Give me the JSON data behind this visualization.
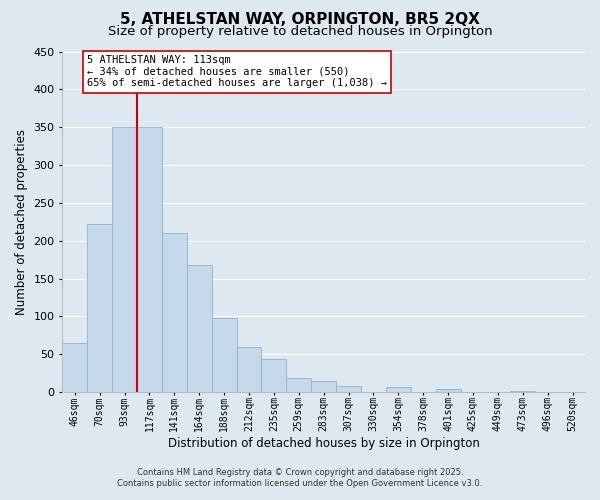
{
  "title": "5, ATHELSTAN WAY, ORPINGTON, BR5 2QX",
  "subtitle": "Size of property relative to detached houses in Orpington",
  "xlabel": "Distribution of detached houses by size in Orpington",
  "ylabel": "Number of detached properties",
  "categories": [
    "46sqm",
    "70sqm",
    "93sqm",
    "117sqm",
    "141sqm",
    "164sqm",
    "188sqm",
    "212sqm",
    "235sqm",
    "259sqm",
    "283sqm",
    "307sqm",
    "330sqm",
    "354sqm",
    "378sqm",
    "401sqm",
    "425sqm",
    "449sqm",
    "473sqm",
    "496sqm",
    "520sqm"
  ],
  "values": [
    65,
    222,
    350,
    350,
    210,
    168,
    98,
    60,
    44,
    18,
    15,
    8,
    0,
    7,
    0,
    4,
    0,
    0,
    2,
    0,
    0
  ],
  "bar_color": "#c6d9ea",
  "bar_edge_color": "#8ab4d0",
  "ylim": [
    0,
    450
  ],
  "yticks": [
    0,
    50,
    100,
    150,
    200,
    250,
    300,
    350,
    400,
    450
  ],
  "vline_color": "#cc0000",
  "annotation_title": "5 ATHELSTAN WAY: 113sqm",
  "annotation_line1": "← 34% of detached houses are smaller (550)",
  "annotation_line2": "65% of semi-detached houses are larger (1,038) →",
  "annotation_box_color": "#ffffff",
  "annotation_box_edge": "#cc0000",
  "background_color": "#dde8f0",
  "plot_bg_color": "#dde8f0",
  "grid_color": "#ffffff",
  "footer1": "Contains HM Land Registry data © Crown copyright and database right 2025.",
  "footer2": "Contains public sector information licensed under the Open Government Licence v3.0.",
  "title_fontsize": 11,
  "subtitle_fontsize": 9.5
}
